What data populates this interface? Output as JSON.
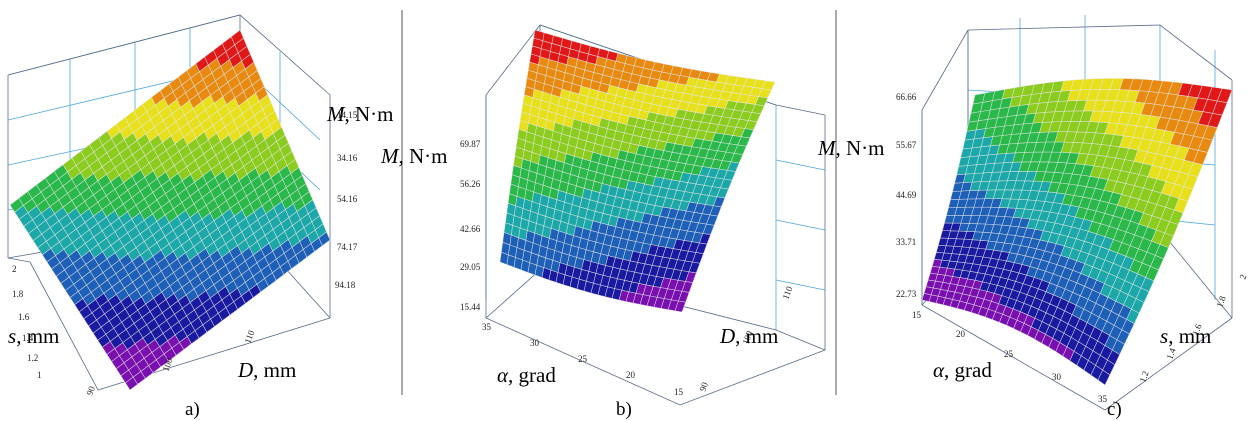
{
  "colors": {
    "grid_line": "#4da6e0",
    "box_line": "#5a6a8a",
    "divider": "#555555",
    "mesh": "#e8e8e8",
    "bands": [
      "#7a0fb0",
      "#1a1aa0",
      "#1e5fb8",
      "#1ca8a8",
      "#2ab84a",
      "#8ccc1e",
      "#e8e01a",
      "#e88a10",
      "#e01818"
    ]
  },
  "chart_data": [
    {
      "type": "surface",
      "caption": "a)",
      "x_axis": {
        "symbol": "D",
        "unit": ", mm",
        "ticks": [
          "90",
          "100",
          "110"
        ],
        "range": [
          90,
          118
        ]
      },
      "y_axis": {
        "symbol": "s",
        "unit": ", mm",
        "ticks": [
          "1",
          "1.2",
          "1.4",
          "1.6",
          "1.8",
          "2"
        ],
        "range": [
          1,
          2
        ]
      },
      "z_axis": {
        "symbol": "M",
        "unit": ", N·m",
        "ticks": [
          "14.15",
          "34.16",
          "54.16",
          "74.17",
          "94.18"
        ],
        "range": [
          14.15,
          94.18
        ]
      },
      "surface_corners": {
        "x_min_y_min": 14.15,
        "x_max_y_min": 40,
        "x_min_y_max": 50,
        "x_max_y_max": 94.18
      }
    },
    {
      "type": "surface",
      "caption": "b)",
      "x_axis": {
        "symbol": "α",
        "unit": ", grad",
        "ticks": [
          "35",
          "30",
          "25",
          "20",
          "15"
        ],
        "range": [
          15,
          35
        ]
      },
      "y_axis": {
        "symbol": "D",
        "unit": ", mm",
        "ticks": [
          "90",
          "100",
          "110"
        ],
        "range": [
          90,
          118
        ]
      },
      "z_axis": {
        "symbol": "M",
        "unit": ", N·m",
        "ticks": [
          "15.44",
          "29.05",
          "42.66",
          "56.26",
          "69.87"
        ],
        "range": [
          15.44,
          69.87
        ]
      },
      "surface_corners": {
        "x_max_y_min": 30,
        "x_min_y_min": 15.44,
        "x_max_y_max": 69.87,
        "x_min_y_max": 55
      }
    },
    {
      "type": "surface",
      "caption": "c)",
      "x_axis": {
        "symbol": "α",
        "unit": ", grad",
        "ticks": [
          "15",
          "20",
          "25",
          "30",
          "35"
        ],
        "range": [
          15,
          35
        ]
      },
      "y_axis": {
        "symbol": "s",
        "unit": ", mm",
        "ticks": [
          "1",
          "1.2",
          "1.4",
          "1.6",
          "1.8",
          "2"
        ],
        "range": [
          1,
          2
        ]
      },
      "z_axis": {
        "symbol": "M",
        "unit": ", N·m",
        "ticks": [
          "22.73",
          "33.71",
          "44.69",
          "55.67",
          "66.66"
        ],
        "range": [
          22.73,
          66.66
        ]
      },
      "surface_corners": {
        "x_min_y_min": 22.73,
        "x_max_y_min": 28,
        "x_min_y_max": 45,
        "x_max_y_max": 66.66
      }
    }
  ]
}
